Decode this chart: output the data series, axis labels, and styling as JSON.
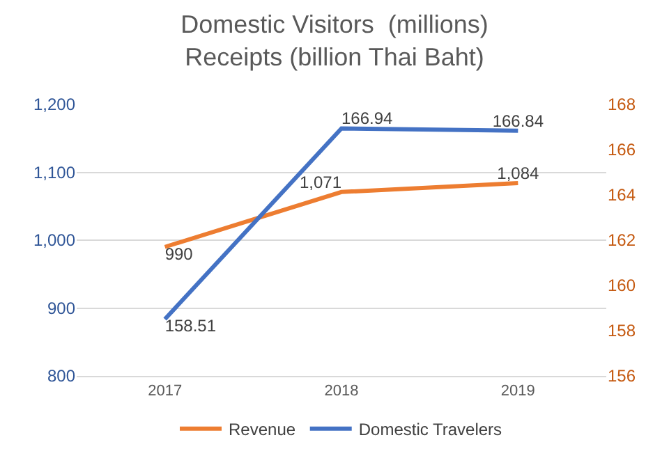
{
  "chart_data": {
    "type": "line",
    "title": "Domestic Visitors  (millions)\nReceipts (billion Thai Baht)",
    "categories": [
      "2017",
      "2018",
      "2019"
    ],
    "series": [
      {
        "name": "Revenue",
        "color": "#ed7d31",
        "axis": "y",
        "values": [
          990,
          1071,
          1084
        ],
        "value_labels": [
          "990",
          "1,071",
          "1,084"
        ]
      },
      {
        "name": "Domestic Travelers",
        "color": "#4472c4",
        "axis": "y2",
        "values": [
          158.51,
          166.94,
          166.84
        ],
        "value_labels": [
          "158.51",
          "166.94",
          "166.84"
        ]
      }
    ],
    "ylim": [
      800,
      1200
    ],
    "yticks": [
      {
        "value": 800,
        "label": "800"
      },
      {
        "value": 900,
        "label": "900"
      },
      {
        "value": 1000,
        "label": "1,000"
      },
      {
        "value": 1100,
        "label": "1,100"
      },
      {
        "value": 1200,
        "label": "1,200"
      }
    ],
    "y2lim": [
      156,
      168
    ],
    "y2ticks": [
      156,
      158,
      160,
      162,
      164,
      166,
      168
    ],
    "grid": "y",
    "legend": "bottom",
    "marker": "none",
    "line_style": "solid"
  }
}
